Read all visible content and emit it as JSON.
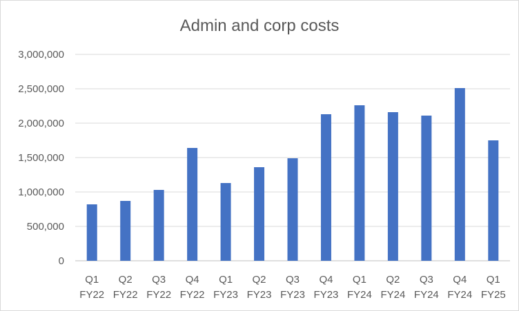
{
  "chart_data": {
    "type": "bar",
    "title": "Admin and corp costs",
    "xlabel": "",
    "ylabel": "",
    "categories": [
      [
        "Q1",
        "FY22"
      ],
      [
        "Q2",
        "FY22"
      ],
      [
        "Q3",
        "FY22"
      ],
      [
        "Q4",
        "FY22"
      ],
      [
        "Q1",
        "FY23"
      ],
      [
        "Q2",
        "FY23"
      ],
      [
        "Q3",
        "FY23"
      ],
      [
        "Q4",
        "FY23"
      ],
      [
        "Q1",
        "FY24"
      ],
      [
        "Q2",
        "FY24"
      ],
      [
        "Q3",
        "FY24"
      ],
      [
        "Q4",
        "FY24"
      ],
      [
        "Q1",
        "FY25"
      ]
    ],
    "values": [
      820000,
      870000,
      1030000,
      1640000,
      1130000,
      1360000,
      1490000,
      2130000,
      2260000,
      2160000,
      2110000,
      2510000,
      1750000
    ],
    "ylim": [
      0,
      3000000
    ],
    "yticks": [
      0,
      500000,
      1000000,
      1500000,
      2000000,
      2500000,
      3000000
    ],
    "ytick_labels": [
      "0",
      "500,000",
      "1,000,000",
      "1,500,000",
      "2,000,000",
      "2,500,000",
      "3,000,000"
    ],
    "grid": true,
    "legend": "none",
    "bar_color": "#4472c4"
  }
}
